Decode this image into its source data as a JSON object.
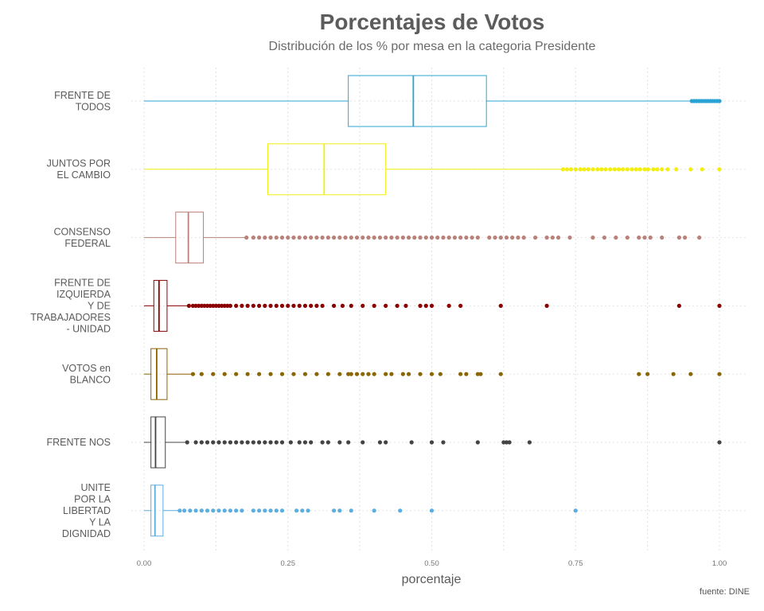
{
  "chart_data": {
    "type": "boxplot",
    "title": "Porcentajes de Votos",
    "subtitle": "Distribución de los % por mesa en la categoria Presidente",
    "xlabel": "porcentaje",
    "ylabel": "",
    "xlim": [
      0,
      1
    ],
    "x_ticks": [
      0,
      0.25,
      0.5,
      0.75,
      1
    ],
    "x_tick_labels": [
      "0.00",
      "0.25",
      "0.50",
      "0.75",
      "1.00"
    ],
    "grid": true,
    "legend": "none",
    "source": "fuente: DINE",
    "categories": [
      {
        "label_lines": [
          "FRENTE DE",
          "TODOS"
        ],
        "color": "#2aa3d4",
        "whisker_low": 0.0,
        "q1": 0.355,
        "median": 0.468,
        "q3": 0.595,
        "whisker_high": 0.95,
        "outliers": [
          0.952,
          0.956,
          0.96,
          0.964,
          0.968,
          0.972,
          0.976,
          0.98,
          0.984,
          0.988,
          0.992,
          0.996,
          1.0
        ]
      },
      {
        "label_lines": [
          "JUNTOS POR",
          "EL CAMBIO"
        ],
        "color": "#f2ee10",
        "whisker_low": 0.0,
        "q1": 0.215,
        "median": 0.313,
        "q3": 0.42,
        "whisker_high": 0.725,
        "outliers": [
          0.728,
          0.735,
          0.742,
          0.75,
          0.758,
          0.765,
          0.772,
          0.78,
          0.788,
          0.795,
          0.802,
          0.81,
          0.818,
          0.825,
          0.832,
          0.84,
          0.848,
          0.855,
          0.862,
          0.87,
          0.876,
          0.885,
          0.892,
          0.9,
          0.91,
          0.925,
          0.95,
          0.97,
          1.0
        ]
      },
      {
        "label_lines": [
          "CONSENSO",
          "FEDERAL"
        ],
        "color": "#b8827a",
        "whisker_low": 0.0,
        "q1": 0.055,
        "median": 0.077,
        "q3": 0.103,
        "whisker_high": 0.175,
        "outliers": [
          0.178,
          0.19,
          0.2,
          0.21,
          0.22,
          0.23,
          0.24,
          0.25,
          0.26,
          0.27,
          0.28,
          0.29,
          0.3,
          0.31,
          0.32,
          0.33,
          0.34,
          0.35,
          0.36,
          0.37,
          0.38,
          0.39,
          0.4,
          0.41,
          0.42,
          0.43,
          0.44,
          0.45,
          0.46,
          0.47,
          0.48,
          0.49,
          0.5,
          0.51,
          0.52,
          0.53,
          0.54,
          0.55,
          0.56,
          0.57,
          0.58,
          0.6,
          0.61,
          0.62,
          0.63,
          0.64,
          0.65,
          0.66,
          0.68,
          0.7,
          0.71,
          0.72,
          0.74,
          0.78,
          0.8,
          0.82,
          0.84,
          0.86,
          0.87,
          0.88,
          0.9,
          0.93,
          0.94,
          0.965
        ]
      },
      {
        "label_lines": [
          "FRENTE DE",
          "IZQUIERDA",
          "Y DE",
          "TRABAJADORES",
          "- UNIDAD"
        ],
        "color": "#8b0000",
        "whisker_low": 0.0,
        "q1": 0.017,
        "median": 0.026,
        "q3": 0.04,
        "whisker_high": 0.075,
        "outliers": [
          0.078,
          0.085,
          0.09,
          0.095,
          0.1,
          0.105,
          0.11,
          0.115,
          0.12,
          0.125,
          0.13,
          0.135,
          0.14,
          0.145,
          0.15,
          0.16,
          0.17,
          0.18,
          0.19,
          0.2,
          0.21,
          0.22,
          0.23,
          0.24,
          0.25,
          0.26,
          0.27,
          0.28,
          0.29,
          0.3,
          0.31,
          0.33,
          0.345,
          0.36,
          0.38,
          0.4,
          0.42,
          0.44,
          0.455,
          0.48,
          0.49,
          0.5,
          0.53,
          0.55,
          0.62,
          0.7,
          0.93,
          1.0
        ]
      },
      {
        "label_lines": [
          "VOTOS en",
          "BLANCO"
        ],
        "color": "#8a6600",
        "whisker_low": 0.0,
        "q1": 0.012,
        "median": 0.022,
        "q3": 0.04,
        "whisker_high": 0.083,
        "outliers": [
          0.085,
          0.1,
          0.12,
          0.14,
          0.16,
          0.18,
          0.2,
          0.22,
          0.24,
          0.26,
          0.28,
          0.3,
          0.32,
          0.34,
          0.355,
          0.36,
          0.37,
          0.38,
          0.39,
          0.4,
          0.42,
          0.43,
          0.45,
          0.46,
          0.48,
          0.5,
          0.515,
          0.55,
          0.56,
          0.58,
          0.585,
          0.62,
          0.86,
          0.875,
          0.92,
          0.95,
          1.0
        ]
      },
      {
        "label_lines": [
          "FRENTE NOS"
        ],
        "color": "#444444",
        "whisker_low": 0.0,
        "q1": 0.012,
        "median": 0.02,
        "q3": 0.037,
        "whisker_high": 0.073,
        "outliers": [
          0.075,
          0.09,
          0.1,
          0.11,
          0.12,
          0.13,
          0.14,
          0.15,
          0.16,
          0.17,
          0.18,
          0.19,
          0.2,
          0.21,
          0.22,
          0.23,
          0.24,
          0.255,
          0.27,
          0.28,
          0.29,
          0.31,
          0.32,
          0.34,
          0.355,
          0.38,
          0.41,
          0.42,
          0.465,
          0.5,
          0.52,
          0.58,
          0.625,
          0.63,
          0.635,
          0.67,
          1.0
        ]
      },
      {
        "label_lines": [
          "UNITE",
          "POR LA",
          "LIBERTAD",
          "Y LA",
          "DIGNIDAD"
        ],
        "color": "#5aaee0",
        "whisker_low": 0.0,
        "q1": 0.012,
        "median": 0.019,
        "q3": 0.033,
        "whisker_high": 0.06,
        "outliers": [
          0.062,
          0.07,
          0.08,
          0.09,
          0.1,
          0.11,
          0.12,
          0.13,
          0.14,
          0.15,
          0.16,
          0.17,
          0.19,
          0.2,
          0.21,
          0.22,
          0.23,
          0.24,
          0.265,
          0.275,
          0.285,
          0.33,
          0.34,
          0.36,
          0.4,
          0.445,
          0.5,
          0.75
        ]
      }
    ]
  }
}
